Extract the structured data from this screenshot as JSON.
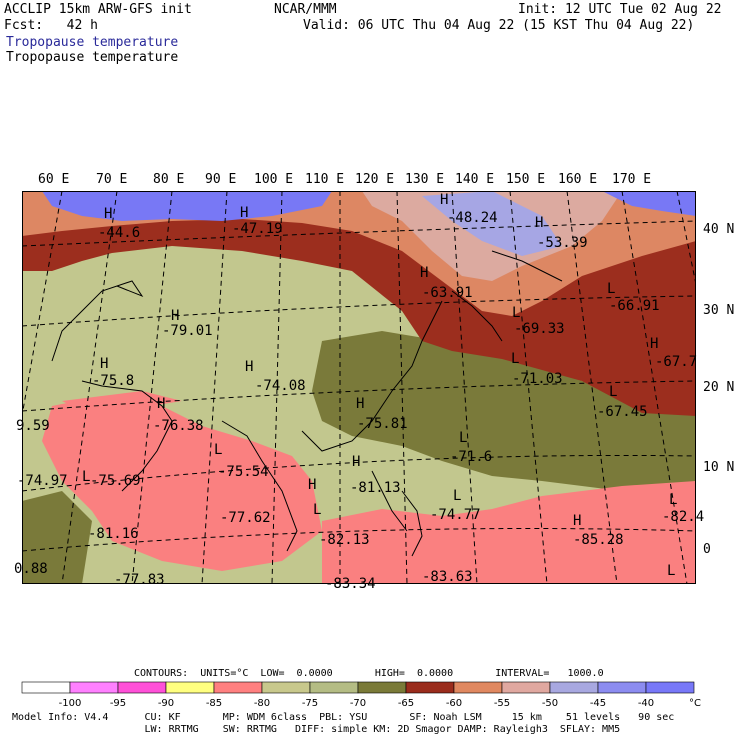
{
  "header": {
    "line1_left": "ACCLIP 15km ARW-GFS init",
    "center": "NCAR/MMM",
    "line1_right": "Init: 12 UTC Tue 02 Aug 22",
    "line2_left": "Fcst:   42 h",
    "line2_right": "Valid: 06 UTC Thu 04 Aug 22 (15 KST Thu 04 Aug 22)",
    "field_title_1": "Tropopause temperature",
    "field_title_2": "Tropopause temperature"
  },
  "lon_labels": [
    "60 E",
    "70 E",
    "80 E",
    "90 E",
    "100 E",
    "110 E",
    "120 E",
    "130 E",
    "140 E",
    "150 E",
    "160 E",
    "170 E"
  ],
  "lat_labels": [
    "40 N",
    "30 N",
    "20 N",
    "10 N",
    "0"
  ],
  "hl_markers": [
    {
      "m": "H"
    },
    {
      "m": "H"
    },
    {
      "m": "H"
    },
    {
      "m": "H"
    },
    {
      "m": "H"
    },
    {
      "m": "L"
    },
    {
      "m": "H"
    },
    {
      "m": "L"
    },
    {
      "m": "H"
    },
    {
      "m": "L"
    },
    {
      "m": "H"
    },
    {
      "m": "H"
    },
    {
      "m": "L"
    },
    {
      "m": "H"
    },
    {
      "m": "H"
    },
    {
      "m": "L"
    },
    {
      "m": "L"
    },
    {
      "m": "H"
    },
    {
      "m": "L"
    },
    {
      "m": "L"
    },
    {
      "m": "H"
    },
    {
      "m": "L"
    },
    {
      "m": "L"
    },
    {
      "m": "H"
    },
    {
      "m": "L"
    },
    {
      "m": "H"
    }
  ],
  "hl_values": [
    "-44.6",
    "-47.19",
    "-48.24",
    "-53.39",
    "-63.91",
    "-66.91",
    "-79.01",
    "-69.33",
    "-67.7",
    "-71.03",
    "-75.8",
    "-74.08",
    "-67.45",
    "-76.38",
    "-75.81",
    "-71.6",
    "9.59",
    "-75.54",
    "-74.97",
    "-75.69",
    "-81.13",
    "-74.77",
    "-82.4",
    "-81.16",
    "-77.62",
    "-82.13",
    "-85.28",
    "0.88",
    "-77.83",
    "-83.34",
    "-83.63"
  ],
  "colorbar": {
    "contours_line": "CONTOURS:  UNITS=°C  LOW=  0.0000       HIGH=  0.0000       INTERVAL=   1000.0",
    "colors": [
      "#ffffff",
      "#ff80ff",
      "#ff50d8",
      "#ffff80",
      "#ff8080",
      "#c8c88c",
      "#b4bc84",
      "#7a7a38",
      "#9a2c1c",
      "#e08860",
      "#e0a8a0",
      "#a8a8e0",
      "#8c8cf0",
      "#7878f8",
      "#7070ff"
    ],
    "labels": [
      "-100",
      "-95",
      "-90",
      "-85",
      "-80",
      "-75",
      "-70",
      "-65",
      "-60",
      "-55",
      "-50",
      "-45",
      "-40"
    ],
    "unit": "°C"
  },
  "footer": {
    "line1": "  Model Info: V4.4      CU: KF       MP: WDM 6class  PBL: YSU       SF: Noah LSM     15 km    51 levels   90 sec",
    "line2": "                        LW: RRTMG    SW: RRTMG   DIFF: simple KM: 2D Smagor DAMP: Rayleigh3  SFLAY: MM5"
  },
  "colors": {
    "lt_olive": "#c2c78e",
    "dk_olive": "#7a7a3a",
    "salmon": "#fa8080",
    "dk_red": "#9c2e1e",
    "orange": "#dd8763",
    "rose": "#dcaaa0",
    "lav": "#a6a6e4",
    "blue": "#7878f5"
  }
}
